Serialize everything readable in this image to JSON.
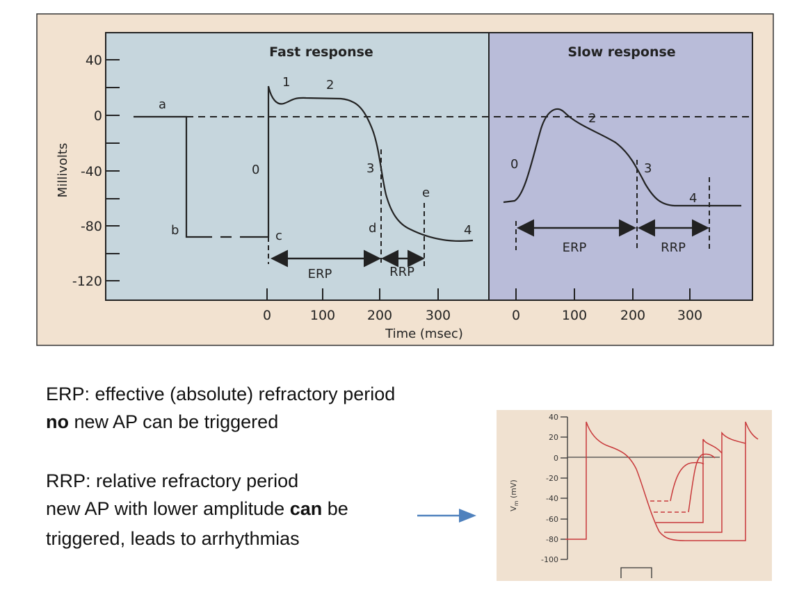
{
  "figure": {
    "y_axis_label": "Millivolts",
    "y_ticks": [
      "40",
      "0",
      "-40",
      "-80",
      "-120"
    ],
    "x_axis_label": "Time (msec)",
    "fast": {
      "title": "Fast response",
      "x_ticks": [
        "0",
        "100",
        "200",
        "300"
      ],
      "phase_labels": [
        "0",
        "1",
        "2",
        "3",
        "4"
      ],
      "point_labels": [
        "a",
        "b",
        "c",
        "d",
        "e"
      ],
      "erp": "ERP",
      "rrp": "RRP"
    },
    "slow": {
      "title": "Slow response",
      "x_ticks": [
        "0",
        "100",
        "200",
        "300"
      ],
      "phase_labels": [
        "0",
        "2",
        "3",
        "4"
      ],
      "erp": "ERP",
      "rrp": "RRP"
    },
    "colors": {
      "frame": "#f2e2d0",
      "fast_panel": "#c6d6dd",
      "slow_panel": "#b9bcd9"
    }
  },
  "notes": {
    "erp_line": "ERP: effective (absolute) refractory period",
    "erp_desc_bold": "no",
    "erp_desc_rest": " new AP can be triggered",
    "rrp_line": "RRP: relative refractory period",
    "rrp_desc_1a": "new AP with lower amplitude ",
    "rrp_desc_1b": "can",
    "rrp_desc_1c": " be",
    "rrp_desc_2": "triggered, leads to arrhythmias",
    "arrow_color": "#4f81bd"
  },
  "inset": {
    "y_label_main": "V",
    "y_label_sub": "m",
    "y_label_unit": " (mV)",
    "y_ticks": [
      "40",
      "20",
      "0",
      "-20",
      "-40",
      "-60",
      "-80",
      "-100"
    ],
    "trace_color": "#c8383a"
  }
}
